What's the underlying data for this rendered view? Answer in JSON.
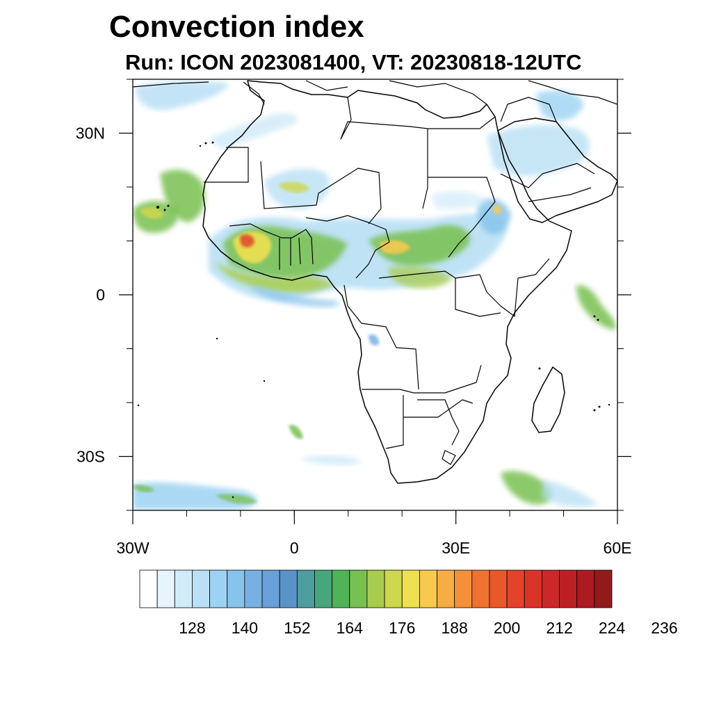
{
  "title": "Convection index",
  "subtitle": "Run: ICON 2023081400,  VT: 20230818-12UTC",
  "map": {
    "lon_range": [
      -30,
      60
    ],
    "lat_range": [
      -40,
      40
    ],
    "x_ticks": [
      {
        "value": -30,
        "label": "30W"
      },
      {
        "value": 0,
        "label": "0"
      },
      {
        "value": 30,
        "label": "30E"
      },
      {
        "value": 60,
        "label": "60E"
      }
    ],
    "y_ticks": [
      {
        "value": 30,
        "label": "30N"
      },
      {
        "value": 0,
        "label": "0"
      },
      {
        "value": -30,
        "label": "30S"
      }
    ]
  },
  "colorbar": {
    "colors": [
      "#ffffff",
      "#e8f4fc",
      "#d2ebf8",
      "#b9e0f5",
      "#9dd3f2",
      "#86c4ec",
      "#78b1e1",
      "#6aa0d8",
      "#5a93c8",
      "#4e9ea0",
      "#48a67c",
      "#4fb458",
      "#78c050",
      "#a8cc4e",
      "#cdd84e",
      "#eee050",
      "#f7c94e",
      "#f6ad44",
      "#f4903a",
      "#ef7230",
      "#e9582a",
      "#e2432a",
      "#da3329",
      "#cc2829",
      "#bd1f26",
      "#ab1b22",
      "#921a1c"
    ],
    "tick_labels": [
      "128",
      "140",
      "152",
      "164",
      "176",
      "188",
      "200",
      "212",
      "224",
      "236"
    ]
  }
}
